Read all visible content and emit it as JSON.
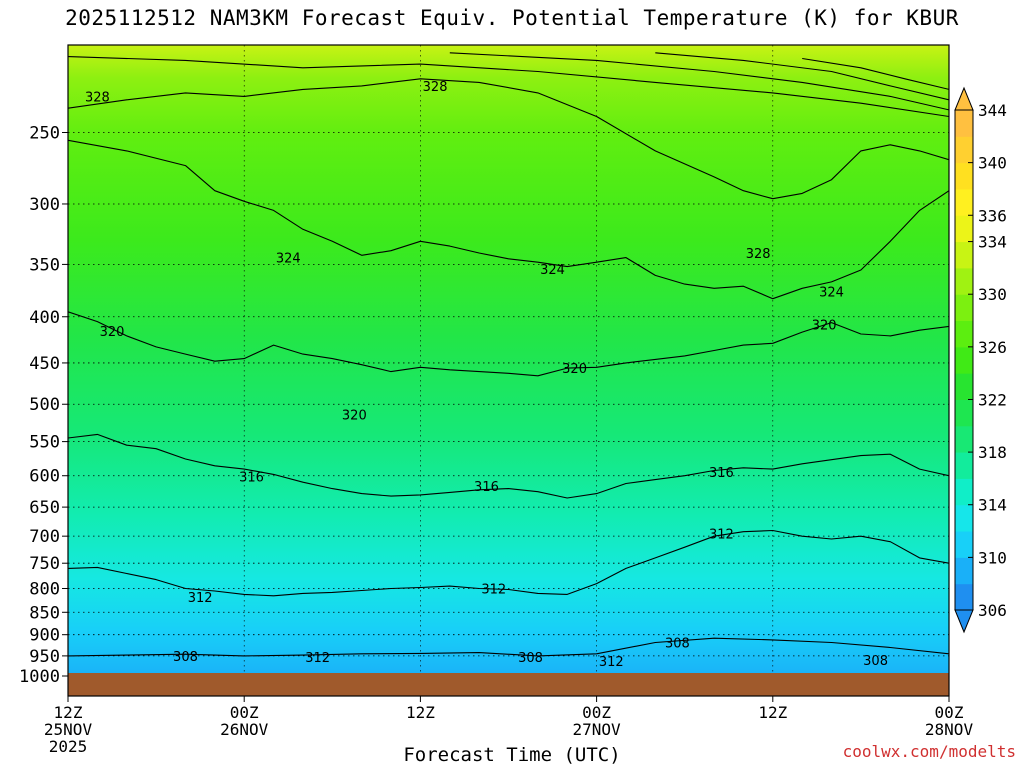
{
  "title": "2025112512 NAM3KM Forecast Equiv. Potential Temperature (K) for KBUR",
  "credit": "coolwx.com/modelts",
  "chart_data": {
    "type": "heatmap",
    "title": "2025112512 NAM3KM Forecast Equiv. Potential Temperature (K) for KBUR",
    "xlabel": "Forecast Time (UTC)",
    "ylabel": "",
    "x_ticks": [
      {
        "hour": 0,
        "label": "12Z",
        "date": "25NOV",
        "year": "2025"
      },
      {
        "hour": 12,
        "label": "00Z",
        "date": "26NOV",
        "year": ""
      },
      {
        "hour": 24,
        "label": "12Z",
        "date": "",
        "year": ""
      },
      {
        "hour": 36,
        "label": "00Z",
        "date": "27NOV",
        "year": ""
      },
      {
        "hour": 48,
        "label": "12Z",
        "date": "",
        "year": ""
      },
      {
        "hour": 60,
        "label": "00Z",
        "date": "28NOV",
        "year": ""
      }
    ],
    "xlim": [
      0,
      60
    ],
    "y_ticks": [
      250,
      300,
      350,
      400,
      450,
      500,
      550,
      600,
      650,
      700,
      750,
      800,
      850,
      900,
      950,
      1000
    ],
    "ylim": [
      200,
      1000
    ],
    "y_scale": "log-pressure",
    "grid": "dotted horizontal at pressure ticks",
    "colorbar": {
      "label_values": [
        306,
        310,
        314,
        318,
        322,
        326,
        330,
        334,
        336,
        340,
        344
      ],
      "levels": [
        306,
        308,
        310,
        312,
        314,
        316,
        318,
        320,
        322,
        324,
        326,
        328,
        330,
        332,
        334,
        336,
        338,
        340,
        342,
        344
      ],
      "colors": [
        "#1f8ff0",
        "#1ab0f8",
        "#18d0f8",
        "#16e6ea",
        "#10eec8",
        "#12ec9c",
        "#18e874",
        "#1ee650",
        "#28e430",
        "#40ea16",
        "#5cee10",
        "#7cf010",
        "#a0f212",
        "#c8f414",
        "#ecf418",
        "#fff020",
        "#ffe020",
        "#ffd030",
        "#ffc040"
      ]
    },
    "contour_labels": [
      {
        "value": 328,
        "hour": 2.0,
        "p": 228
      },
      {
        "value": 328,
        "hour": 25.0,
        "p": 222
      },
      {
        "value": 328,
        "hour": 47.0,
        "p": 340
      },
      {
        "value": 324,
        "hour": 15.0,
        "p": 344
      },
      {
        "value": 324,
        "hour": 33.0,
        "p": 354
      },
      {
        "value": 324,
        "hour": 52.0,
        "p": 375
      },
      {
        "value": 320,
        "hour": 3.0,
        "p": 415
      },
      {
        "value": 320,
        "hour": 34.5,
        "p": 456
      },
      {
        "value": 320,
        "hour": 19.5,
        "p": 513
      },
      {
        "value": 320,
        "hour": 51.5,
        "p": 408
      },
      {
        "value": 316,
        "hour": 12.5,
        "p": 601
      },
      {
        "value": 316,
        "hour": 28.5,
        "p": 616
      },
      {
        "value": 316,
        "hour": 44.5,
        "p": 594
      },
      {
        "value": 312,
        "hour": 9.0,
        "p": 818
      },
      {
        "value": 312,
        "hour": 29.0,
        "p": 800
      },
      {
        "value": 312,
        "hour": 44.5,
        "p": 695
      },
      {
        "value": 308,
        "hour": 8.0,
        "p": 950
      },
      {
        "value": 312,
        "hour": 17.0,
        "p": 953
      },
      {
        "value": 308,
        "hour": 31.5,
        "p": 953
      },
      {
        "value": 308,
        "hour": 41.5,
        "p": 918
      },
      {
        "value": 312,
        "hour": 37.0,
        "p": 963
      },
      {
        "value": 308,
        "hour": 55.0,
        "p": 960
      }
    ],
    "contours": [
      {
        "value": 344,
        "points": [
          [
            50,
            207
          ],
          [
            54,
            212
          ],
          [
            57,
            218
          ],
          [
            60,
            224
          ]
        ]
      },
      {
        "value": 340,
        "points": [
          [
            40,
            204
          ],
          [
            46,
            208
          ],
          [
            52,
            214
          ],
          [
            56,
            222
          ],
          [
            60,
            230
          ]
        ]
      },
      {
        "value": 336,
        "points": [
          [
            26,
            204
          ],
          [
            36,
            208
          ],
          [
            44,
            214
          ],
          [
            50,
            220
          ],
          [
            56,
            228
          ],
          [
            60,
            236
          ]
        ]
      },
      {
        "value": 332,
        "points": [
          [
            0,
            206
          ],
          [
            8,
            208
          ],
          [
            16,
            212
          ],
          [
            24,
            210
          ],
          [
            32,
            214
          ],
          [
            40,
            220
          ],
          [
            48,
            226
          ],
          [
            54,
            232
          ],
          [
            60,
            240
          ]
        ]
      },
      {
        "value": 328,
        "points": [
          [
            0,
            235
          ],
          [
            4,
            230
          ],
          [
            8,
            226
          ],
          [
            12,
            228
          ],
          [
            16,
            224
          ],
          [
            20,
            222
          ],
          [
            24,
            218
          ],
          [
            28,
            220
          ],
          [
            32,
            226
          ],
          [
            36,
            240
          ],
          [
            40,
            262
          ],
          [
            44,
            280
          ],
          [
            46,
            290
          ],
          [
            48,
            296
          ],
          [
            50,
            292
          ],
          [
            52,
            282
          ],
          [
            54,
            262
          ],
          [
            56,
            258
          ],
          [
            58,
            262
          ],
          [
            60,
            268
          ]
        ]
      },
      {
        "value": 324,
        "points": [
          [
            0,
            255
          ],
          [
            4,
            262
          ],
          [
            8,
            272
          ],
          [
            10,
            290
          ],
          [
            12,
            298
          ],
          [
            14,
            305
          ],
          [
            16,
            320
          ],
          [
            18,
            330
          ],
          [
            20,
            342
          ],
          [
            22,
            338
          ],
          [
            24,
            330
          ],
          [
            26,
            334
          ],
          [
            28,
            340
          ],
          [
            30,
            345
          ],
          [
            32,
            348
          ],
          [
            34,
            352
          ],
          [
            36,
            348
          ],
          [
            38,
            344
          ],
          [
            40,
            360
          ],
          [
            42,
            368
          ],
          [
            44,
            372
          ],
          [
            46,
            370
          ],
          [
            48,
            382
          ],
          [
            50,
            372
          ],
          [
            52,
            366
          ],
          [
            54,
            355
          ],
          [
            56,
            330
          ],
          [
            58,
            305
          ],
          [
            60,
            290
          ]
        ]
      },
      {
        "value": 320,
        "points": [
          [
            0,
            395
          ],
          [
            2,
            405
          ],
          [
            4,
            420
          ],
          [
            6,
            432
          ],
          [
            8,
            440
          ],
          [
            10,
            448
          ],
          [
            12,
            445
          ],
          [
            14,
            430
          ],
          [
            16,
            440
          ],
          [
            18,
            445
          ],
          [
            20,
            452
          ],
          [
            22,
            460
          ],
          [
            24,
            455
          ],
          [
            26,
            458
          ],
          [
            28,
            460
          ],
          [
            30,
            462
          ],
          [
            32,
            465
          ],
          [
            34,
            456
          ],
          [
            36,
            455
          ],
          [
            38,
            450
          ],
          [
            40,
            446
          ],
          [
            42,
            442
          ],
          [
            44,
            436
          ],
          [
            46,
            430
          ],
          [
            48,
            428
          ],
          [
            50,
            416
          ],
          [
            52,
            406
          ],
          [
            54,
            418
          ],
          [
            56,
            420
          ],
          [
            58,
            414
          ],
          [
            60,
            410
          ]
        ]
      },
      {
        "value": 316,
        "points": [
          [
            0,
            545
          ],
          [
            2,
            540
          ],
          [
            4,
            555
          ],
          [
            6,
            560
          ],
          [
            8,
            575
          ],
          [
            10,
            585
          ],
          [
            12,
            590
          ],
          [
            14,
            598
          ],
          [
            16,
            610
          ],
          [
            18,
            620
          ],
          [
            20,
            628
          ],
          [
            22,
            632
          ],
          [
            24,
            630
          ],
          [
            26,
            626
          ],
          [
            28,
            622
          ],
          [
            30,
            620
          ],
          [
            32,
            625
          ],
          [
            34,
            635
          ],
          [
            36,
            628
          ],
          [
            38,
            612
          ],
          [
            40,
            606
          ],
          [
            42,
            600
          ],
          [
            44,
            592
          ],
          [
            46,
            588
          ],
          [
            48,
            590
          ],
          [
            50,
            582
          ],
          [
            52,
            576
          ],
          [
            54,
            570
          ],
          [
            56,
            568
          ],
          [
            58,
            590
          ],
          [
            60,
            600
          ]
        ]
      },
      {
        "value": 312,
        "points": [
          [
            0,
            760
          ],
          [
            2,
            758
          ],
          [
            4,
            770
          ],
          [
            6,
            782
          ],
          [
            8,
            800
          ],
          [
            10,
            805
          ],
          [
            12,
            812
          ],
          [
            14,
            815
          ],
          [
            16,
            810
          ],
          [
            18,
            808
          ],
          [
            20,
            804
          ],
          [
            22,
            800
          ],
          [
            24,
            798
          ],
          [
            26,
            795
          ],
          [
            28,
            800
          ],
          [
            30,
            802
          ],
          [
            32,
            810
          ],
          [
            34,
            812
          ],
          [
            36,
            790
          ],
          [
            38,
            760
          ],
          [
            40,
            740
          ],
          [
            42,
            720
          ],
          [
            44,
            700
          ],
          [
            46,
            692
          ],
          [
            48,
            690
          ],
          [
            50,
            700
          ],
          [
            52,
            705
          ],
          [
            54,
            700
          ],
          [
            56,
            710
          ],
          [
            58,
            740
          ],
          [
            60,
            750
          ]
        ]
      },
      {
        "value": 308,
        "points": [
          [
            0,
            950
          ],
          [
            4,
            948
          ],
          [
            8,
            946
          ],
          [
            12,
            950
          ],
          [
            16,
            948
          ],
          [
            20,
            945
          ],
          [
            24,
            944
          ],
          [
            28,
            942
          ],
          [
            32,
            950
          ],
          [
            36,
            945
          ],
          [
            40,
            918
          ],
          [
            44,
            908
          ],
          [
            48,
            912
          ],
          [
            52,
            918
          ],
          [
            56,
            930
          ],
          [
            60,
            945
          ]
        ]
      }
    ]
  }
}
